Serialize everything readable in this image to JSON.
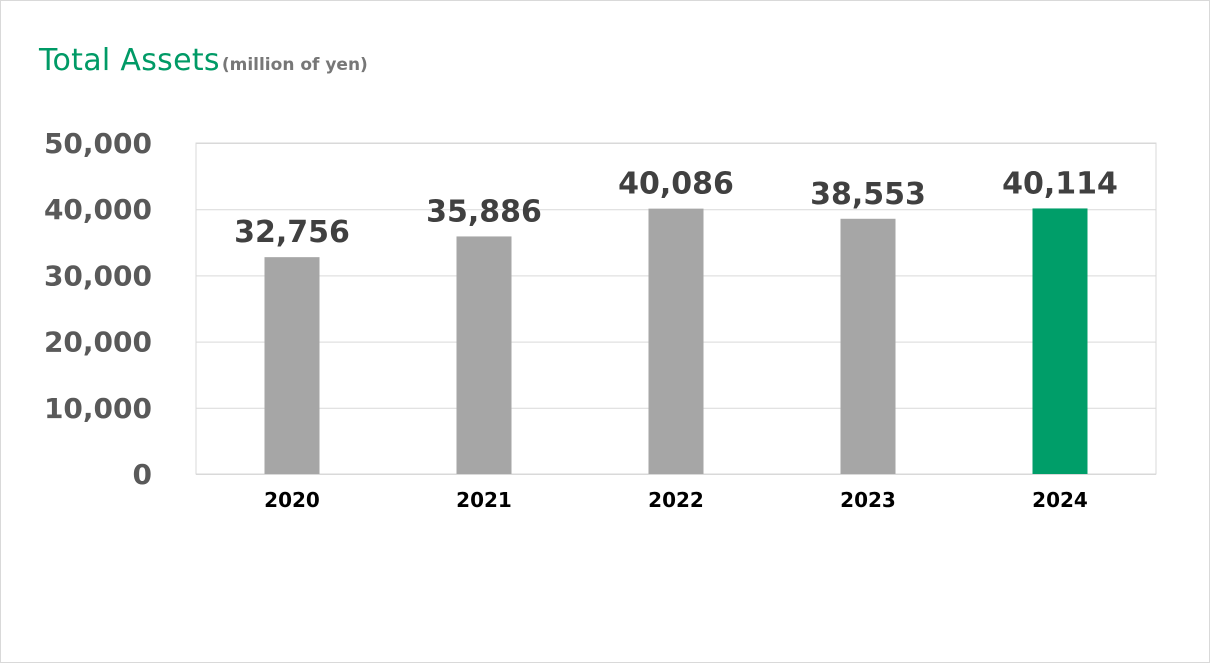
{
  "chart_data": {
    "type": "bar",
    "title": "Total Assets",
    "subtitle": "(million of yen)",
    "categories": [
      "2020",
      "2021",
      "2022",
      "2023",
      "2024"
    ],
    "values": [
      32756,
      35886,
      40086,
      38553,
      40114
    ],
    "data_labels": [
      "32,756",
      "35,886",
      "40,086",
      "38,553",
      "40,114"
    ],
    "yticks": [
      "0",
      "10,000",
      "20,000",
      "30,000",
      "40,000",
      "50,000"
    ],
    "ylim": [
      0,
      50000
    ],
    "xlabel": "",
    "ylabel": "",
    "grid": true,
    "colors": {
      "bar_default": "#a6a6a6",
      "bar_highlight": "#009e69",
      "highlight_category": "2024",
      "title": "#009a66",
      "grid": "#d9d9d9"
    }
  }
}
